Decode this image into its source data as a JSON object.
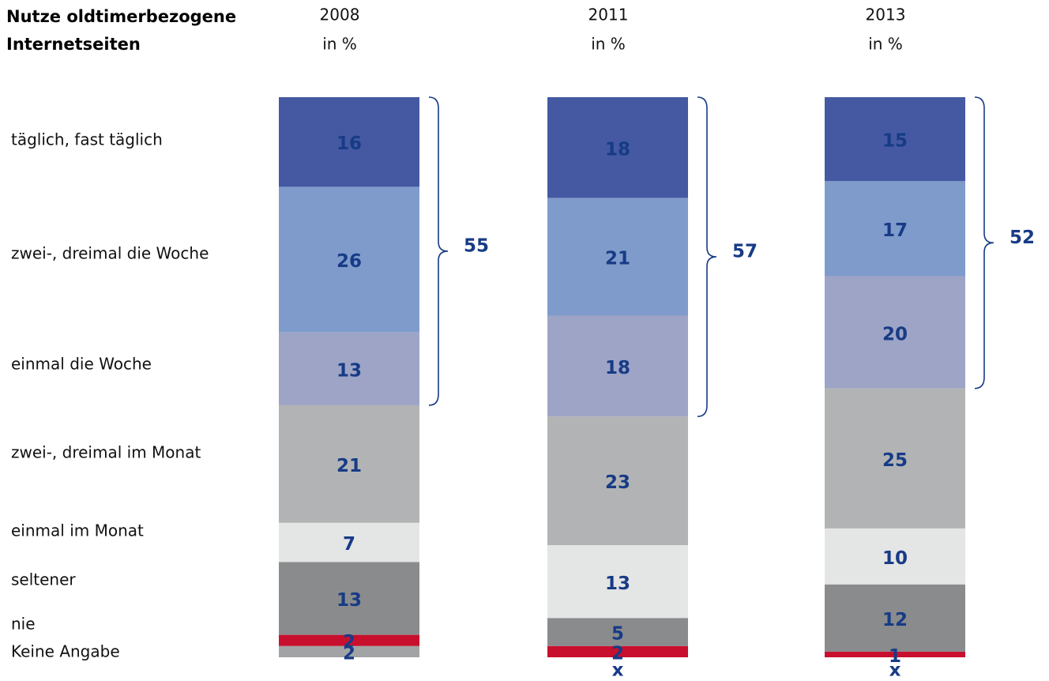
{
  "chart_data": {
    "type": "stacked-bar",
    "title": [
      "Nutze oldtimerbezogene",
      "Internetseiten"
    ],
    "unit": "in %",
    "categories": [
      "täglich, fast täglich",
      "zwei-, dreimal die Woche",
      "einmal die Woche",
      "zwei-, dreimal im Monat",
      "einmal im Monat",
      "seltener",
      "nie",
      "Keine Angabe"
    ],
    "colors": [
      "#4459a2",
      "#7f9bcb",
      "#9da4c6",
      "#b2b3b5",
      "#e4e5e5",
      "#8a8b8d",
      "#c8102e",
      "#a2a3a5"
    ],
    "ylim": [
      0,
      100
    ],
    "series": [
      {
        "name": "2008",
        "values": [
          16,
          26,
          13,
          21,
          7,
          13,
          2,
          2
        ],
        "bracket_total": 55
      },
      {
        "name": "2011",
        "values": [
          18,
          21,
          18,
          23,
          13,
          5,
          2,
          null
        ],
        "value_labels": [
          "18",
          "21",
          "18",
          "23",
          "13",
          "5",
          "2",
          "x"
        ],
        "bracket_total": 57
      },
      {
        "name": "2013",
        "values": [
          15,
          17,
          20,
          25,
          10,
          12,
          1,
          null
        ],
        "value_labels": [
          "15",
          "17",
          "20",
          "25",
          "10",
          "12",
          "1",
          "x"
        ],
        "bracket_total": 52
      }
    ]
  }
}
